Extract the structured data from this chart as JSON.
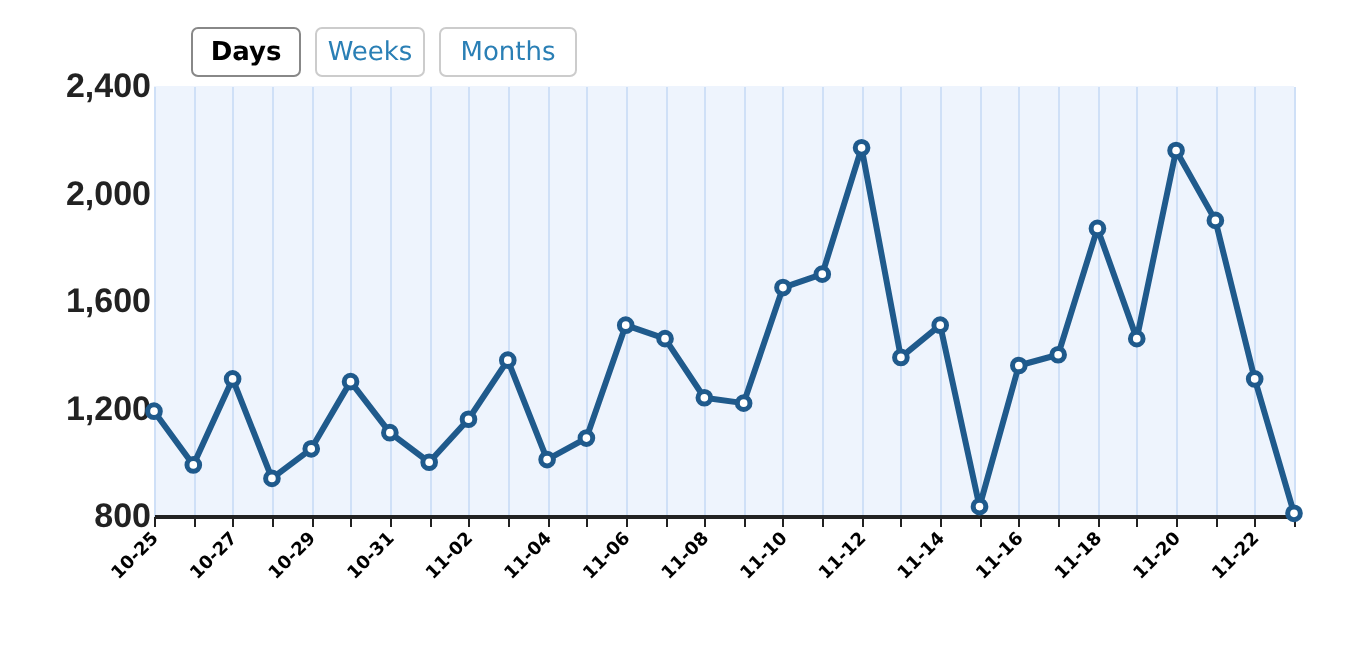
{
  "chart_data": {
    "type": "line",
    "categories": [
      "10-25",
      null,
      "10-27",
      null,
      "10-29",
      null,
      "10-31",
      null,
      "11-02",
      null,
      "11-04",
      null,
      "11-06",
      null,
      "11-08",
      null,
      "11-10",
      null,
      "11-12",
      null,
      "11-14",
      null,
      "11-16",
      null,
      "11-18",
      null,
      "11-20",
      null,
      "11-22",
      null
    ],
    "series": [
      {
        "color": "#1f5a8c",
        "values": [
          1190,
          990,
          1310,
          940,
          1050,
          1300,
          1110,
          1000,
          1160,
          1380,
          1010,
          1090,
          1510,
          1460,
          1240,
          1220,
          1650,
          1700,
          2170,
          1390,
          1510,
          835,
          1360,
          1400,
          1870,
          1460,
          2160,
          1900,
          1310,
          810
        ]
      }
    ],
    "ylim": [
      800,
      2400
    ],
    "yticks": [
      800,
      {
        "value": 1200,
        "label": "1,200"
      },
      {
        "value": 1600,
        "label": "1,600"
      },
      {
        "value": 2000,
        "label": "2,000"
      },
      {
        "value": 2400,
        "label": "2,400"
      }
    ],
    "grid": "x",
    "marker": "circle",
    "line_style": "solid",
    "annotations": [
      "Days",
      "Weeks",
      "Months"
    ]
  }
}
